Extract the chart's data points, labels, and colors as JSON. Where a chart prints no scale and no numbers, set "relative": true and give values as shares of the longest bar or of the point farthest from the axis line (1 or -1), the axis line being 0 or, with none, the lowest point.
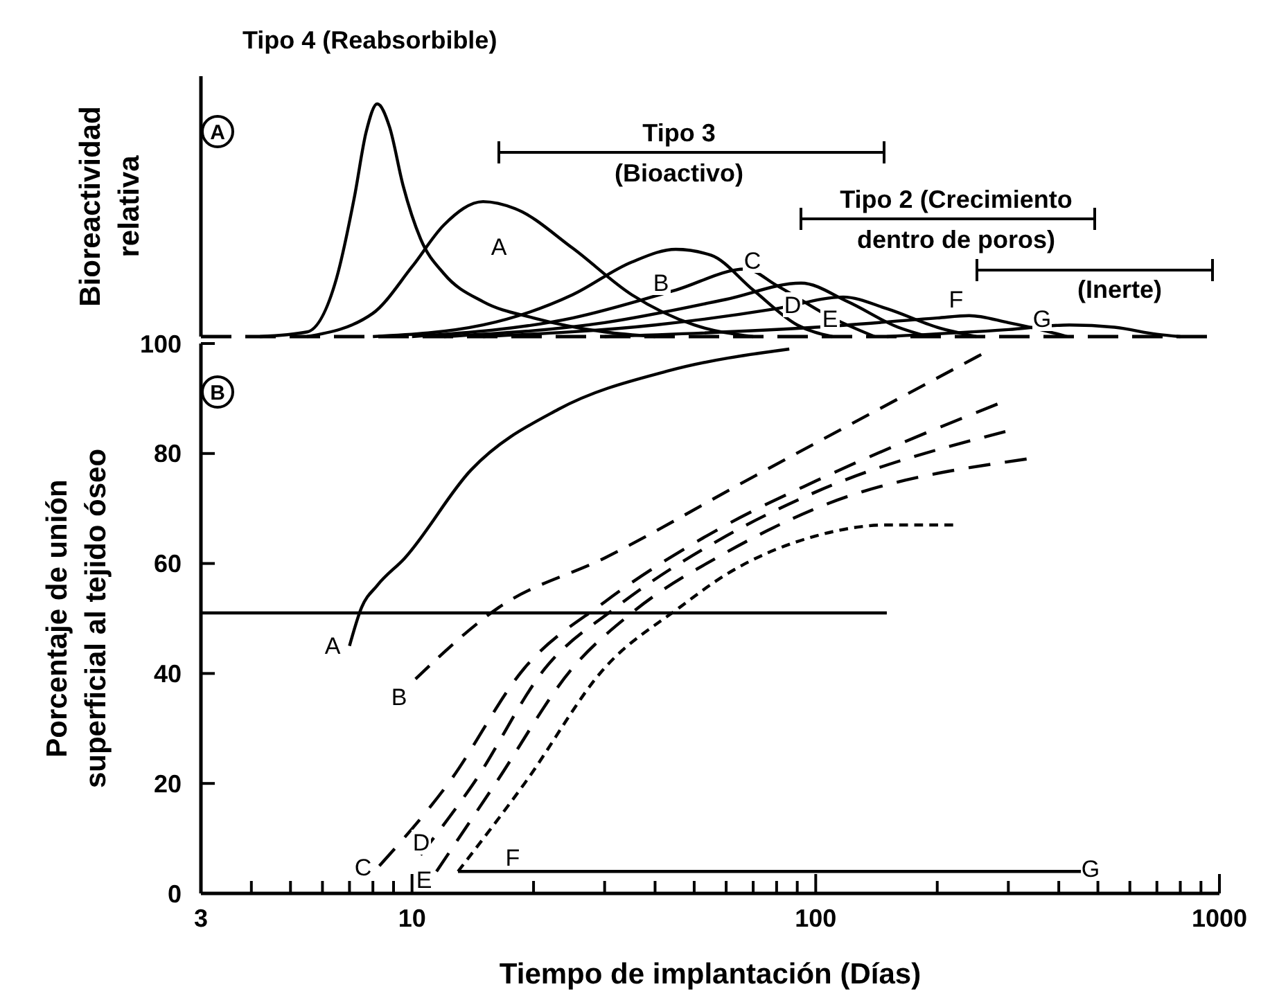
{
  "chart_data": [
    {
      "type": "line",
      "title": "Tipo 4 (Reabsorbible)",
      "ylabel": "Bioreactividad\nrelativa",
      "relative": true,
      "log": "x",
      "xlim": [
        3,
        1000
      ],
      "series": [
        {
          "color": "#000000",
          "line_style": "solid",
          "x": [
            4.2,
            5.5,
            6.5,
            7.2,
            7.7,
            8.2,
            8.8,
            9.5,
            10.5,
            12,
            15,
            20,
            30,
            40
          ],
          "values": [
            0,
            0.02,
            0.25,
            0.6,
            0.88,
            1,
            0.9,
            0.65,
            0.42,
            0.27,
            0.15,
            0.08,
            0.02,
            0
          ]
        },
        {
          "color": "#000000",
          "line_style": "solid",
          "x": [
            5.5,
            8,
            10,
            12,
            15,
            18,
            25,
            35,
            50,
            70
          ],
          "values": [
            0,
            0.1,
            0.3,
            0.48,
            0.58,
            0.55,
            0.38,
            0.18,
            0.05,
            0
          ]
        },
        {
          "color": "#000000",
          "line_style": "solid",
          "x": [
            8,
            15,
            25,
            35,
            45,
            55,
            70,
            90,
            110
          ],
          "values": [
            0,
            0.05,
            0.18,
            0.32,
            0.375,
            0.35,
            0.2,
            0.05,
            0
          ]
        },
        {
          "color": "#000000",
          "line_style": "solid",
          "x": [
            10,
            25,
            45,
            67,
            80,
            110,
            140
          ],
          "values": [
            0,
            0.08,
            0.2,
            0.29,
            0.22,
            0.08,
            0
          ]
        },
        {
          "color": "#000000",
          "line_style": "solid",
          "x": [
            12,
            30,
            60,
            92,
            120,
            160,
            190
          ],
          "values": [
            0,
            0.06,
            0.16,
            0.23,
            0.15,
            0.04,
            0
          ]
        },
        {
          "color": "#000000",
          "line_style": "solid",
          "x": [
            15,
            40,
            80,
            117,
            150,
            200,
            250
          ],
          "values": [
            0,
            0.05,
            0.12,
            0.17,
            0.12,
            0.04,
            0
          ]
        },
        {
          "color": "#000000",
          "line_style": "solid",
          "x": [
            30,
            100,
            200,
            240,
            300,
            380,
            420
          ],
          "values": [
            0,
            0.04,
            0.08,
            0.09,
            0.06,
            0.02,
            0
          ]
        },
        {
          "color": "#000000",
          "line_style": "solid",
          "x": [
            150,
            300,
            425,
            550,
            700,
            800
          ],
          "values": [
            0,
            0.03,
            0.05,
            0.04,
            0.01,
            0
          ]
        }
      ],
      "annotations": [
        "A",
        "Tipo 3\n(Bioactivo)",
        "Tipo 2 (Crecimiento\ndentro de poros)",
        "(Inerte)",
        "A",
        "B",
        "C",
        "D",
        "E",
        "F",
        "G"
      ]
    },
    {
      "type": "line",
      "xlabel": "Tiempo de implantación (Días)",
      "ylabel": "Porcentaje de unión\nsuperficial al tejido óseo",
      "log": "x",
      "xlim": [
        3,
        1000
      ],
      "ylim": [
        0,
        100
      ],
      "xticks": [
        3,
        {
          "value": 4,
          "label": null
        },
        {
          "value": 5,
          "label": null
        },
        {
          "value": 6,
          "label": null
        },
        {
          "value": 7,
          "label": null
        },
        {
          "value": 8,
          "label": null
        },
        {
          "value": 9,
          "label": null
        },
        10,
        {
          "value": 20,
          "label": null
        },
        {
          "value": 30,
          "label": null
        },
        {
          "value": 40,
          "label": null
        },
        {
          "value": 50,
          "label": null
        },
        {
          "value": 60,
          "label": null
        },
        {
          "value": 70,
          "label": null
        },
        {
          "value": 80,
          "label": null
        },
        {
          "value": 90,
          "label": null
        },
        100,
        {
          "value": 200,
          "label": null
        },
        {
          "value": 300,
          "label": null
        },
        {
          "value": 400,
          "label": null
        },
        {
          "value": 500,
          "label": null
        },
        {
          "value": 600,
          "label": null
        },
        {
          "value": 700,
          "label": null
        },
        {
          "value": 800,
          "label": null
        },
        {
          "value": 900,
          "label": null
        },
        1000
      ],
      "yticks": [
        0,
        20,
        40,
        60,
        80,
        100
      ],
      "series": [
        {
          "color": "#000000",
          "line_style": "solid",
          "x": [
            7,
            7.5,
            8.2,
            9.6,
            14,
            23,
            43,
            86
          ],
          "values": [
            45,
            52,
            56,
            61,
            77,
            88,
            95,
            99
          ]
        },
        {
          "color": "#000000",
          "line_style": "solid",
          "x": [
            3,
            150
          ],
          "values": [
            51,
            51
          ]
        },
        {
          "color": "#000000",
          "line_style": "dashed",
          "x": [
            10.2,
            16.4,
            30,
            71,
            257
          ],
          "values": [
            39,
            52,
            61,
            76,
            98
          ]
        },
        {
          "color": "#000000",
          "line_style": "dashed",
          "x": [
            8.3,
            12.3,
            19,
            30,
            60,
            100,
            282
          ],
          "values": [
            5,
            20,
            41,
            53,
            67,
            75,
            89
          ]
        },
        {
          "color": "#000000",
          "line_style": "dashed",
          "x": [
            10.5,
            14.2,
            21.4,
            32,
            60,
            100,
            295
          ],
          "values": [
            7,
            20,
            41,
            52,
            65,
            73,
            84
          ]
        },
        {
          "color": "#000000",
          "line_style": "dashed",
          "x": [
            11.5,
            16.1,
            25,
            35,
            60,
            100,
            333
          ],
          "values": [
            4,
            20,
            41,
            51,
            62,
            70,
            79
          ]
        },
        {
          "color": "#000000",
          "line_style": "dotted",
          "x": [
            13,
            19,
            30,
            46,
            60,
            100,
            150,
            219
          ],
          "values": [
            4,
            20,
            41,
            52,
            58,
            65,
            67,
            67
          ]
        },
        {
          "color": "#000000",
          "line_style": "solid",
          "x": [
            13,
            460
          ],
          "values": [
            4,
            4
          ]
        }
      ],
      "annotations": [
        "B",
        "A",
        "B",
        "C",
        "D",
        "E",
        "F",
        "G"
      ]
    }
  ]
}
